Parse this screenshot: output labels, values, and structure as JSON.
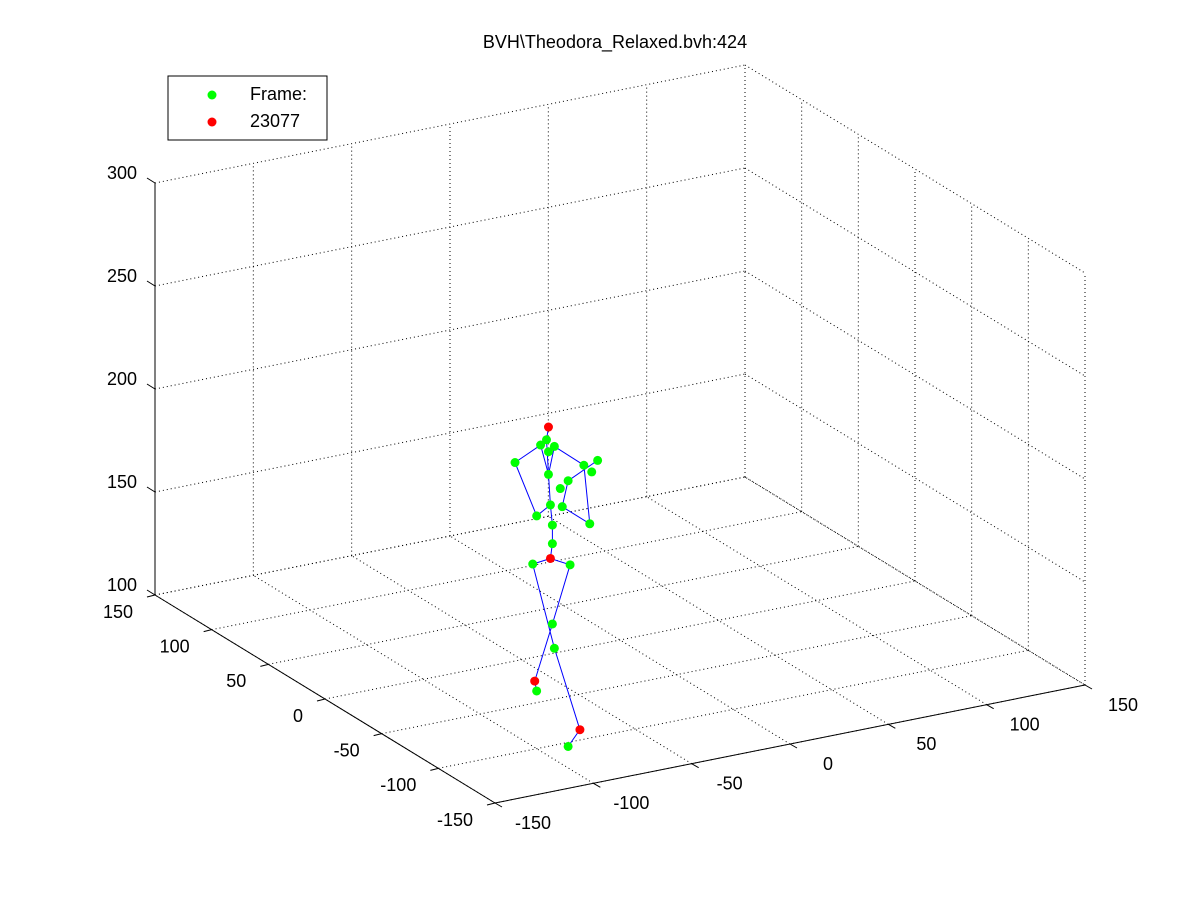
{
  "chart_data": {
    "type": "scatter3",
    "title": "BVH\\Theodora_Relaxed.bvh:424",
    "xlim": [
      -150,
      150
    ],
    "xticks": [
      -150,
      -100,
      -50,
      0,
      50,
      100,
      150
    ],
    "ylim": [
      -150,
      150
    ],
    "yticks": [
      -150,
      -100,
      -50,
      0,
      50,
      100,
      150
    ],
    "zlim": [
      100,
      300
    ],
    "zticks": [
      100,
      150,
      200,
      250,
      300
    ],
    "grid": true,
    "legend": "northwest",
    "series": [
      {
        "name": "Frame:",
        "color": "#00ff00",
        "style": "marker",
        "x": [
          -95,
          -98,
          -94,
          -91,
          -111,
          -94,
          -76,
          -69,
          -72,
          -84,
          -88,
          -93,
          -100,
          -87,
          -73,
          -92,
          -92,
          -102,
          -83,
          -92,
          -91,
          -100,
          -84
        ],
        "y": [
          -100,
          -100,
          -100,
          -100,
          -100,
          -100,
          -100,
          -100,
          -100,
          -100,
          -100,
          -100,
          -100,
          -100,
          -100,
          -100,
          -100,
          -100,
          -100,
          -100,
          -100,
          -100,
          -100
        ],
        "z": [
          249,
          247,
          243,
          245,
          241,
          232,
          233,
          234,
          229,
          227,
          224,
          217,
          213,
          215,
          204,
          207,
          198,
          190,
          186,
          159,
          147,
          128,
          98
        ]
      },
      {
        "name": "23077",
        "color": "#ff0000",
        "style": "marker",
        "x": [
          -94,
          -93,
          -101,
          -78
        ],
        "y": [
          -100,
          -100,
          -100,
          -100
        ],
        "z": [
          255,
          191,
          133,
          105
        ]
      },
      {
        "color": "#0000ff",
        "style": "line",
        "x": [
          -93,
          -92,
          -92,
          -93,
          -94,
          -95,
          -94,
          null,
          -93,
          -102,
          -91,
          -78,
          -84,
          null,
          -93,
          -83,
          -92,
          -101,
          -100,
          null,
          -94,
          -98,
          -111,
          -100,
          -93,
          null,
          -94,
          -91,
          -76,
          -73,
          -87,
          -84,
          -69
        ],
        "y": [
          -100,
          -100,
          -100,
          -100,
          -100,
          -100,
          -100,
          null,
          -100,
          -100,
          -100,
          -100,
          -100,
          null,
          -100,
          -100,
          -100,
          -100,
          -100,
          null,
          -100,
          -100,
          -100,
          -100,
          -100,
          null,
          -100,
          -100,
          -100,
          -100,
          -100,
          -100,
          -100
        ],
        "z": [
          191,
          198,
          207,
          217,
          232,
          249,
          255,
          null,
          191,
          190,
          147,
          105,
          98,
          null,
          191,
          186,
          159,
          133,
          128,
          null,
          232,
          247,
          241,
          213,
          217,
          null,
          232,
          245,
          233,
          204,
          215,
          227,
          234
        ]
      }
    ]
  }
}
